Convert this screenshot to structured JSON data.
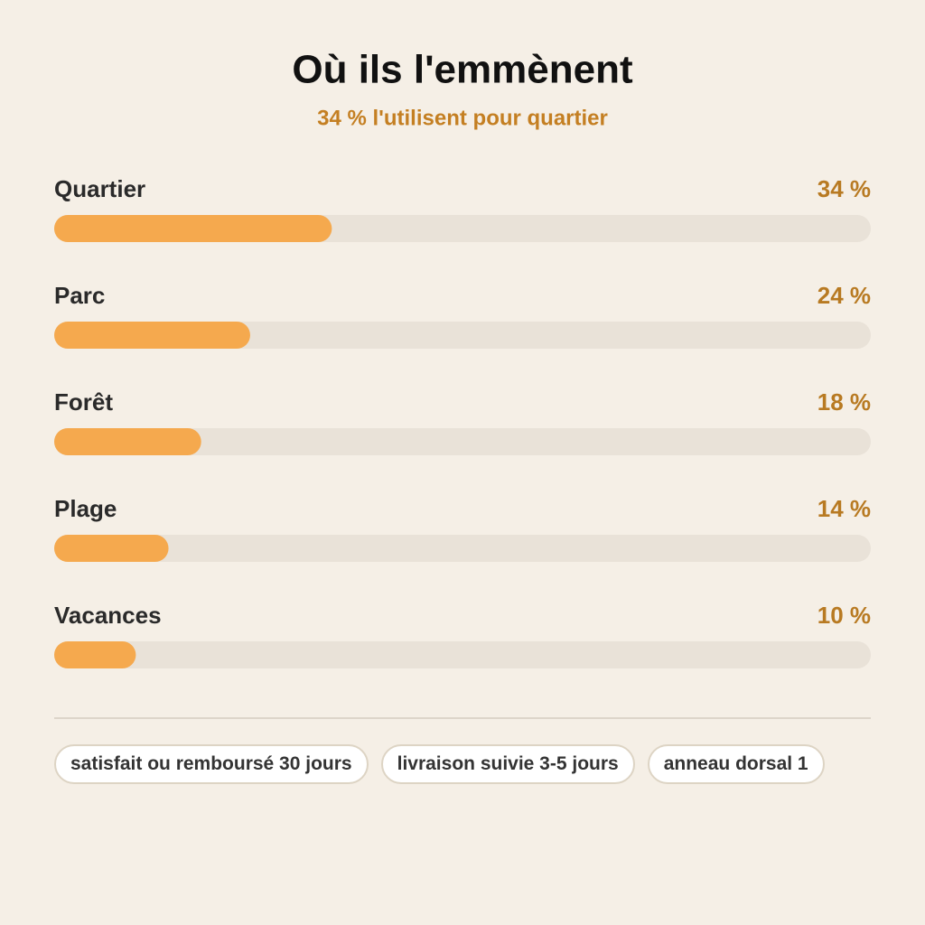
{
  "chart_data": {
    "type": "bar",
    "orientation": "horizontal",
    "title": "Où ils l'emmènent",
    "subtitle": "34 % l'utilisent pour quartier",
    "categories": [
      "Quartier",
      "Parc",
      "Forêt",
      "Plage",
      "Vacances"
    ],
    "values": [
      34,
      24,
      18,
      14,
      10
    ],
    "value_labels": [
      "34 %",
      "24 %",
      "18 %",
      "14 %",
      "10 %"
    ],
    "color": "#f5a94e",
    "xlim": [
      0,
      100
    ]
  },
  "tags": [
    "satisfait ou remboursé 30 jours",
    "livraison suivie 3-5 jours",
    "anneau dorsal 1"
  ]
}
